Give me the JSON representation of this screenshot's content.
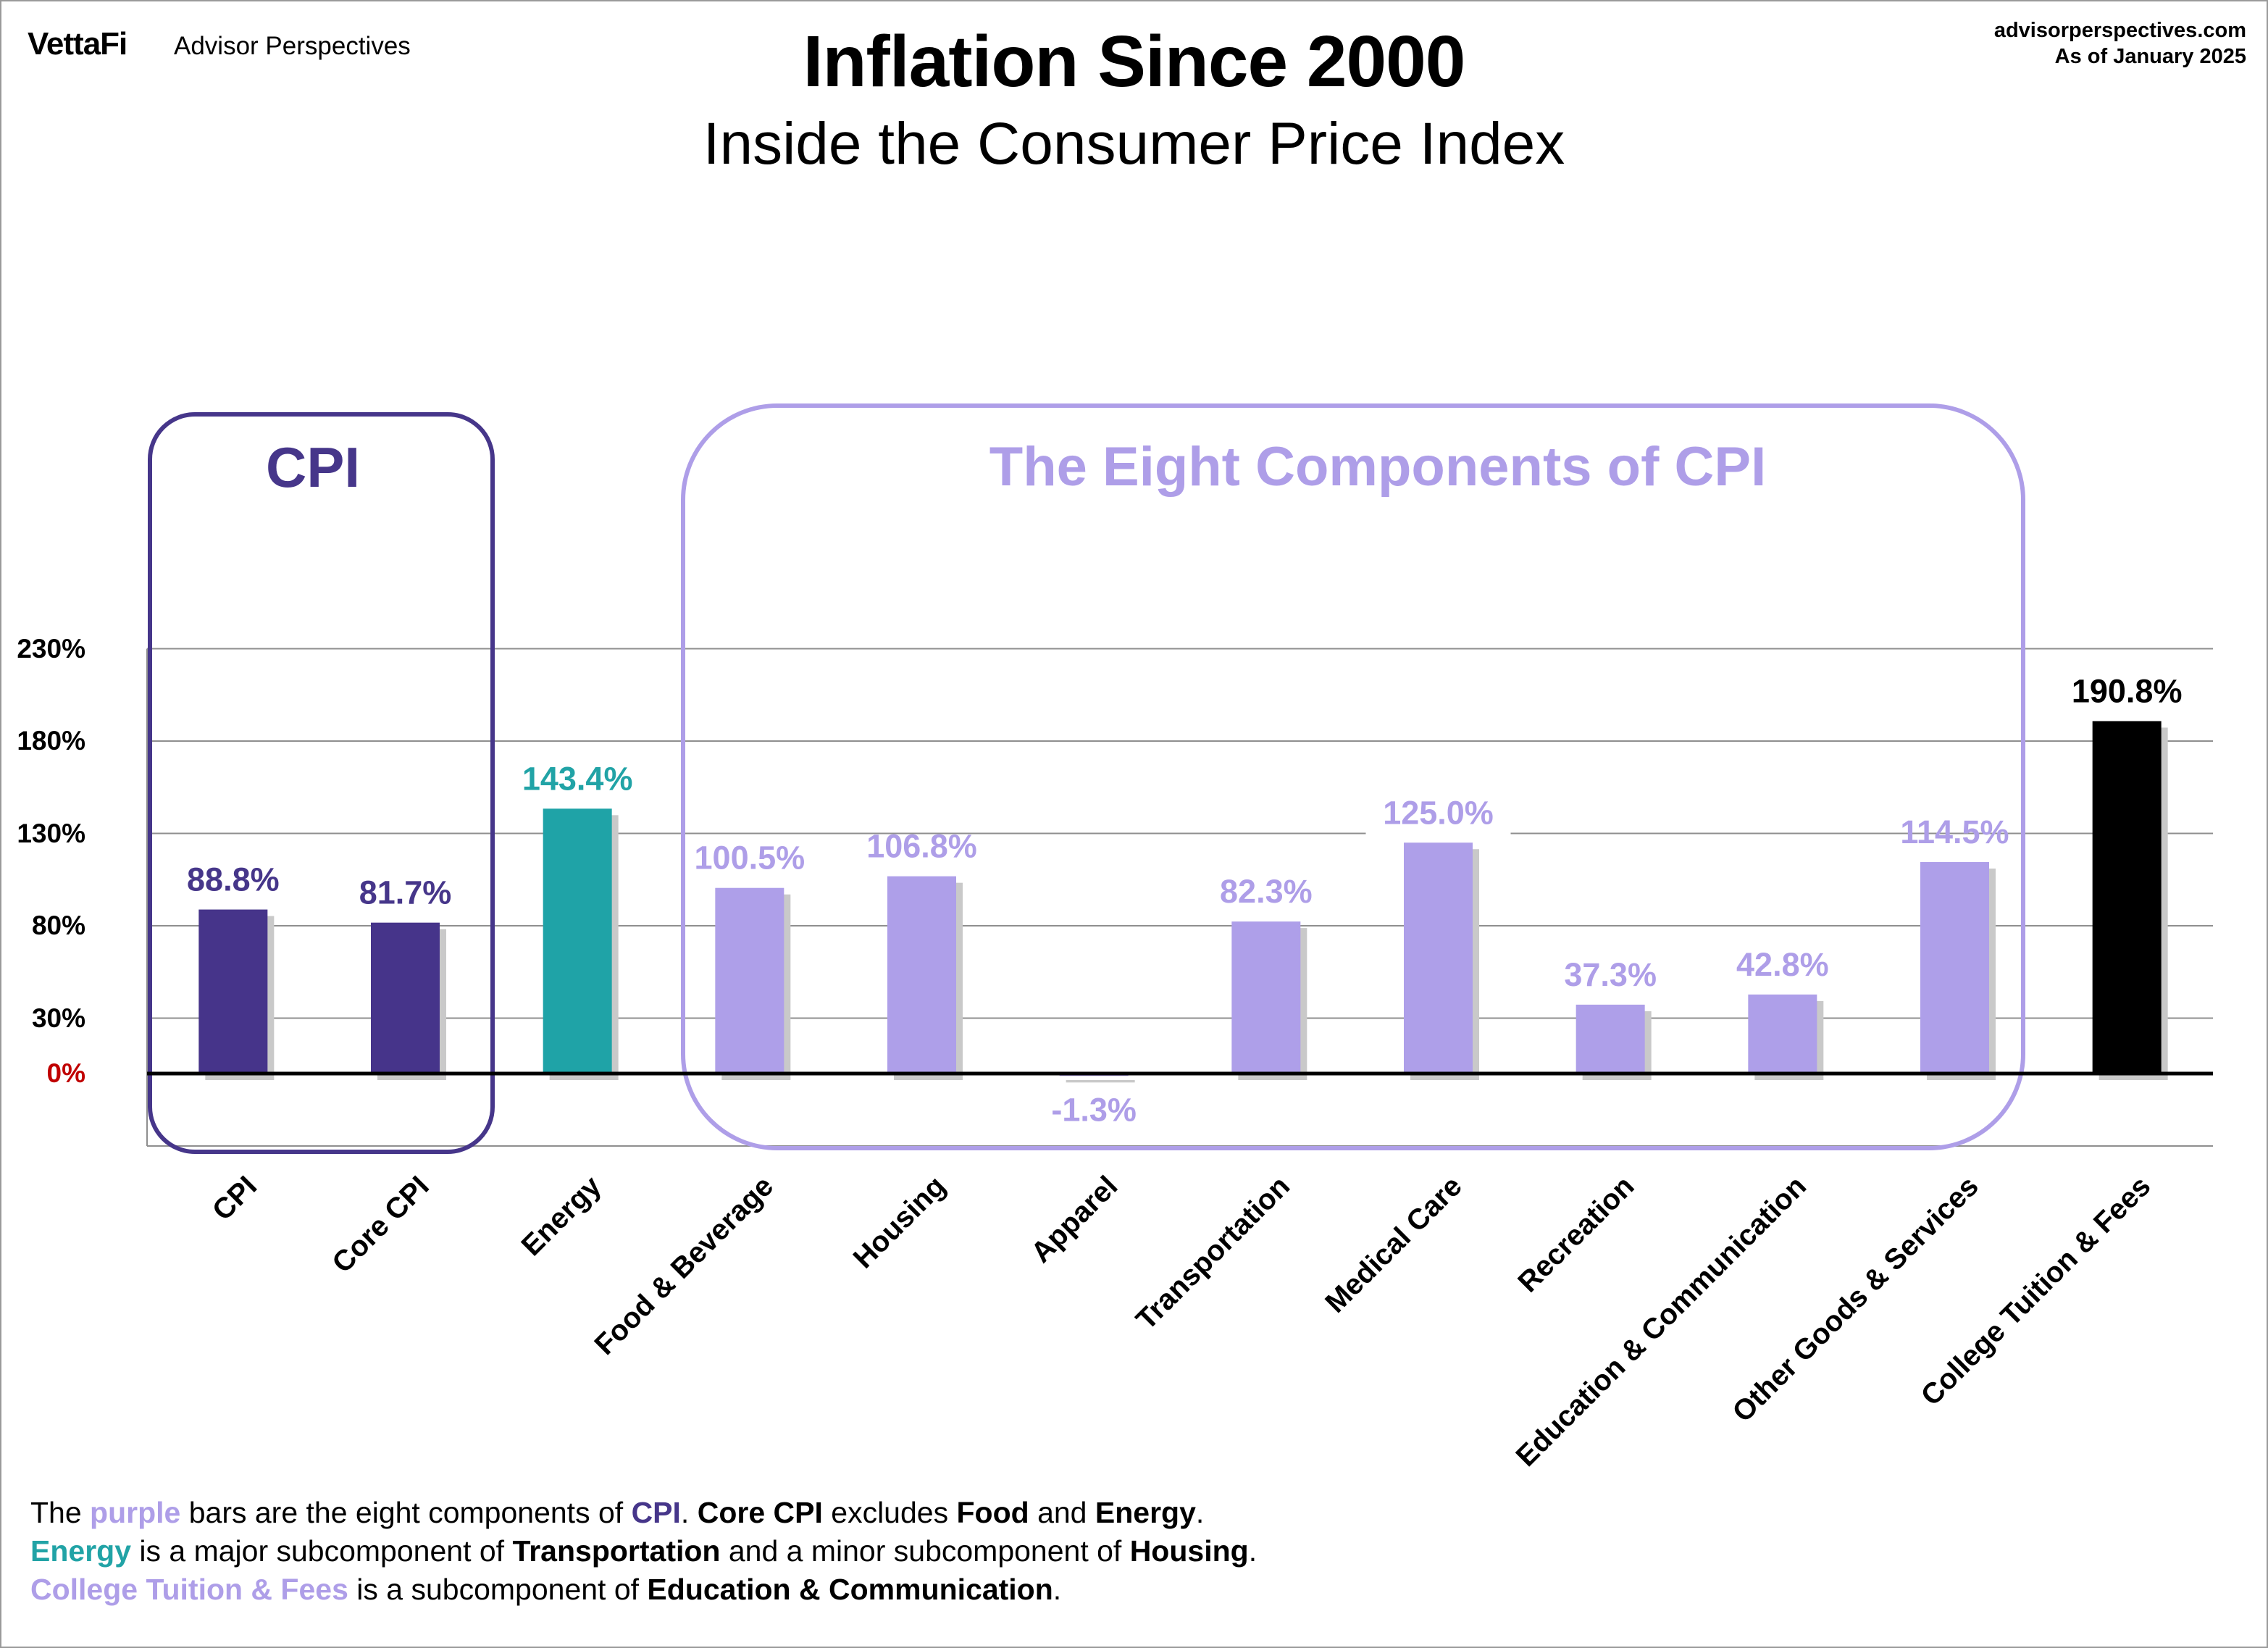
{
  "header": {
    "brand_name": "VettaFi",
    "brand_tagline": "Advisor Perspectives",
    "source_site": "advisorperspectives.com",
    "as_of": "As of January 2025"
  },
  "chart_data": {
    "type": "bar",
    "title": "Inflation Since 2000",
    "subtitle": "Inside the Consumer Price Index",
    "xlabel": "",
    "ylabel": "",
    "ylim": [
      -20,
      230
    ],
    "yticks": [
      0,
      30,
      80,
      130,
      180,
      230
    ],
    "ytick_labels": [
      "0%",
      "30%",
      "80%",
      "130%",
      "180%",
      "230%"
    ],
    "grid": true,
    "categories": [
      "CPI",
      "Core CPI",
      "Energy",
      "Food & Beverage",
      "Housing",
      "Apparel",
      "Transportation",
      "Medical Care",
      "Recreation",
      "Education & Communication",
      "Other Goods & Services",
      "College Tuition & Fees"
    ],
    "values": [
      88.8,
      81.7,
      143.4,
      100.5,
      106.8,
      -1.3,
      82.3,
      125.0,
      37.3,
      42.8,
      114.5,
      190.8
    ],
    "value_labels": [
      "88.8%",
      "81.7%",
      "143.4%",
      "100.5%",
      "106.8%",
      "-1.3%",
      "82.3%",
      "125.0%",
      "37.3%",
      "42.8%",
      "114.5%",
      "190.8%"
    ],
    "bar_colors": [
      "#46348a",
      "#46348a",
      "#1fa3a7",
      "#ae9fe9",
      "#ae9fe9",
      "#ae9fe9",
      "#ae9fe9",
      "#ae9fe9",
      "#ae9fe9",
      "#ae9fe9",
      "#ae9fe9",
      "#000000"
    ],
    "label_colors": [
      "#46368a",
      "#46368a",
      "#21a3a6",
      "#ae9ee8",
      "#ae9ee8",
      "#ae9ee8",
      "#ae9ee8",
      "#ae9ee8",
      "#ae9ee8",
      "#ae9ee8",
      "#ae9ee8",
      "#000000"
    ],
    "groups": [
      {
        "label": "CPI",
        "color": "#46368a"
      },
      {
        "label": "The Eight Components of CPI",
        "color": "#ae9ee8"
      }
    ],
    "zero_label_color": "#c00000"
  },
  "footnote": {
    "line1": {
      "p1": "The ",
      "w1": "purple",
      "p2": " bars are the eight components of ",
      "w2": "CPI",
      "p3": ". ",
      "w3": "Core CPI",
      "p4": " excludes ",
      "w4": "Food",
      "p5": " and ",
      "w5": "Energy",
      "p6": "."
    },
    "line2": {
      "w1": "Energy",
      "p1": " is a major subcomponent of ",
      "w2": "Transportation",
      "p2": " and a minor subcomponent of ",
      "w3": "Housing",
      "p3": "."
    },
    "line3": {
      "w1": "College Tuition & Fees",
      "p1": " is a subcomponent of ",
      "w2": "Education & Communication",
      "p2": "."
    }
  }
}
